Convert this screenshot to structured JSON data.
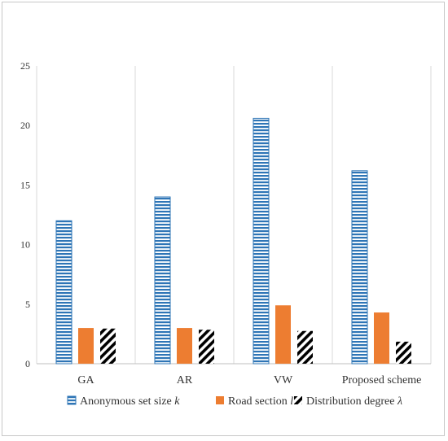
{
  "chart_data": {
    "type": "bar",
    "title": "",
    "xlabel": "",
    "ylabel": "",
    "ylim": [
      0,
      25
    ],
    "yticks": [
      "0",
      "5",
      "10",
      "15",
      "20",
      "25"
    ],
    "categories": [
      "GA",
      "AR",
      "VW",
      "Proposed scheme"
    ],
    "series": [
      {
        "name": "Anonymous set size k",
        "name_main": "Anonymous set size ",
        "name_symbol": "k",
        "pattern": "horizontal-stripes",
        "color": "#2e75b6",
        "values": [
          12.0,
          14.0,
          20.6,
          16.2
        ]
      },
      {
        "name": "Road section l",
        "name_main": "Road section ",
        "name_symbol": "l",
        "pattern": "solid",
        "color": "#ed7d31",
        "values": [
          3.0,
          3.0,
          4.9,
          4.3
        ]
      },
      {
        "name": "Distribution degree λ",
        "name_main": "Distribution degree ",
        "name_symbol": "λ",
        "pattern": "diagonal-stripes",
        "color": "#000000",
        "values": [
          2.95,
          2.85,
          2.75,
          1.85
        ]
      }
    ],
    "grid": {
      "vertical_category_lines": true
    },
    "legend_position": "bottom"
  }
}
